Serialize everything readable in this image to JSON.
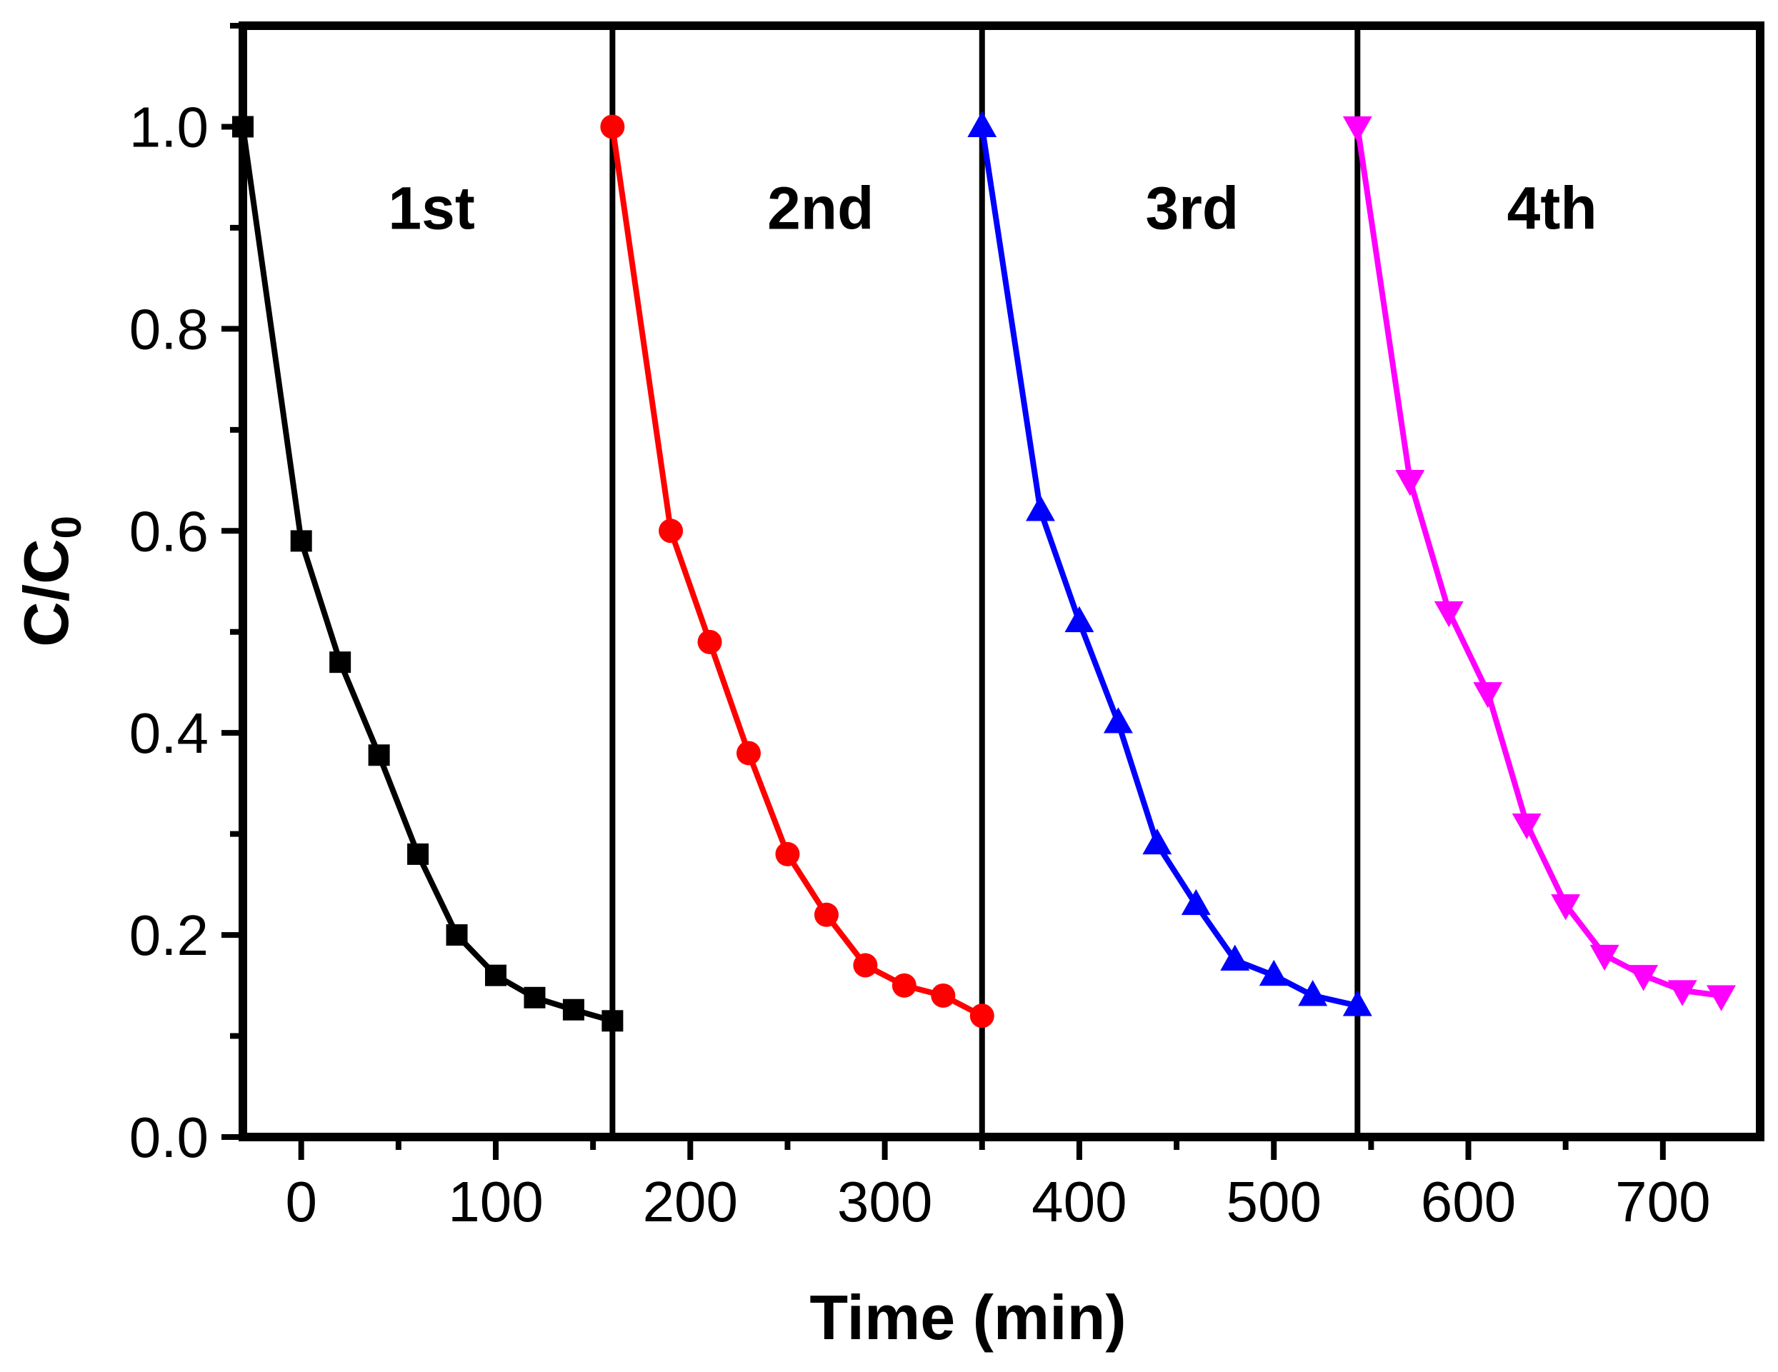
{
  "chart_data": {
    "type": "line",
    "title": "",
    "xlabel": "Time (min)",
    "ylabel": "C/C",
    "ylabel_sub": "0",
    "xlim": [
      -30,
      750
    ],
    "ylim": [
      0,
      1.1
    ],
    "x_ticks": [
      0,
      100,
      200,
      300,
      400,
      500,
      600,
      700
    ],
    "x_tick_labels": [
      "0",
      "100",
      "200",
      "300",
      "400",
      "500",
      "600",
      "700"
    ],
    "y_ticks": [
      0,
      0.2,
      0.4,
      0.6,
      0.8,
      1.0
    ],
    "y_tick_labels": [
      "0.0",
      "0.2",
      "0.4",
      "0.6",
      "0.8",
      "1.0"
    ],
    "grid": false,
    "separators_x": [
      160,
      350,
      543
    ],
    "series": [
      {
        "name": "1st",
        "color": "#000000",
        "marker": "square",
        "label_x": 67,
        "label_y": 0.92,
        "x": [
          -30,
          0,
          20,
          40,
          60,
          80,
          100,
          120,
          140,
          160
        ],
        "y": [
          1.0,
          0.59,
          0.47,
          0.378,
          0.28,
          0.2,
          0.16,
          0.138,
          0.126,
          0.115
        ]
      },
      {
        "name": "2nd",
        "color": "#ff0000",
        "marker": "circle",
        "label_x": 267,
        "label_y": 0.92,
        "x": [
          160,
          190,
          210,
          230,
          250,
          270,
          290,
          310,
          330,
          350
        ],
        "y": [
          1.0,
          0.6,
          0.49,
          0.38,
          0.28,
          0.22,
          0.17,
          0.15,
          0.14,
          0.12
        ]
      },
      {
        "name": "3rd",
        "color": "#0000ff",
        "marker": "triangle-up",
        "label_x": 458,
        "label_y": 0.92,
        "x": [
          350,
          380,
          400,
          420,
          440,
          460,
          480,
          500,
          520,
          543
        ],
        "y": [
          1.0,
          0.62,
          0.51,
          0.41,
          0.29,
          0.23,
          0.175,
          0.16,
          0.14,
          0.13
        ]
      },
      {
        "name": "4th",
        "color": "#ff00ff",
        "marker": "triangle-down",
        "label_x": 643,
        "label_y": 0.92,
        "x": [
          543,
          570,
          590,
          610,
          630,
          650,
          670,
          690,
          710,
          730
        ],
        "y": [
          1.0,
          0.65,
          0.52,
          0.44,
          0.31,
          0.23,
          0.18,
          0.16,
          0.145,
          0.14
        ]
      }
    ]
  }
}
